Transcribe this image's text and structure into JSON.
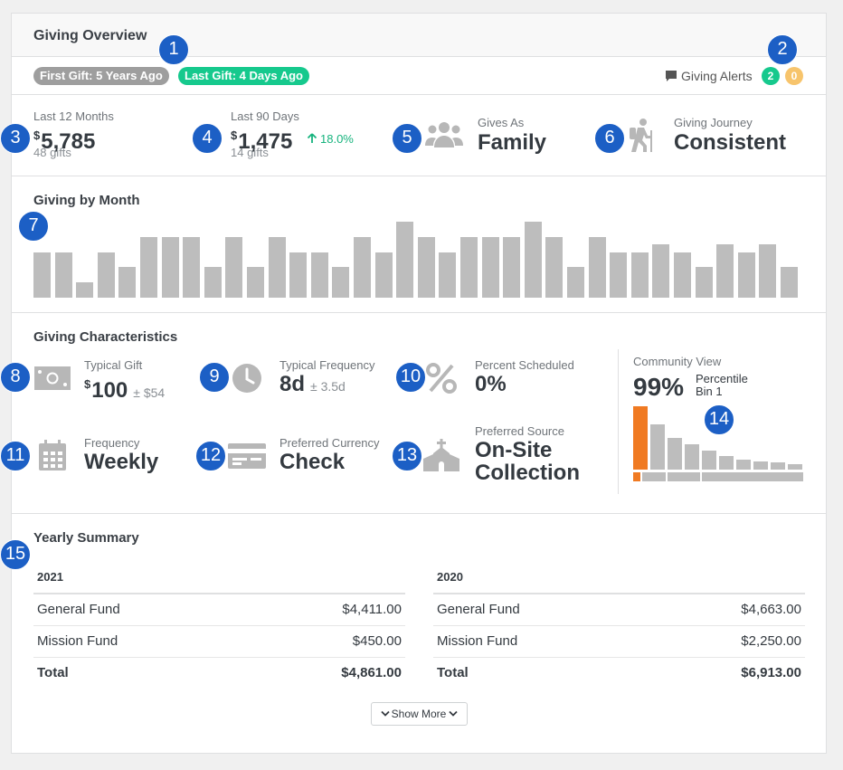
{
  "header": {
    "title": "Giving Overview"
  },
  "badges": {
    "first_gift": "First Gift: 5 Years Ago",
    "last_gift": "Last Gift: 4 Days Ago",
    "alerts_label": "Giving Alerts",
    "alerts_green_count": "2",
    "alerts_yellow_count": "0"
  },
  "callouts": [
    "1",
    "2",
    "3",
    "4",
    "5",
    "6",
    "7",
    "8",
    "9",
    "10",
    "11",
    "12",
    "13",
    "14",
    "15"
  ],
  "kpis": {
    "last12": {
      "label": "Last 12 Months",
      "currency": "$",
      "value": "5,785",
      "sub": "48 gifts"
    },
    "last90": {
      "label": "Last 90 Days",
      "currency": "$",
      "value": "1,475",
      "sub": "14 gifts",
      "trend": "18.0%"
    },
    "gives_as": {
      "label": "Gives As",
      "value": "Family"
    },
    "journey": {
      "label": "Giving Journey",
      "value": "Consistent"
    }
  },
  "giving_by_month": {
    "title": "Giving by Month",
    "chart_data": {
      "type": "bar",
      "title": "Giving by Month",
      "values": [
        3,
        3,
        1,
        3,
        2,
        4,
        4,
        4,
        2,
        4,
        2,
        4,
        3,
        3,
        2,
        4,
        3,
        5,
        4,
        3,
        4,
        4,
        4,
        5,
        4,
        2,
        4,
        3,
        3,
        3.5,
        3,
        2,
        3.5,
        3,
        3.5,
        2
      ],
      "ylim": [
        0,
        5
      ]
    }
  },
  "characteristics": {
    "title": "Giving Characteristics",
    "typical_gift": {
      "label": "Typical Gift",
      "currency": "$",
      "value": "100",
      "plus": "± $54"
    },
    "typical_frequency": {
      "label": "Typical Frequency",
      "value": "8d",
      "plus": "± 3.5d"
    },
    "percent_scheduled": {
      "label": "Percent Scheduled",
      "value": "0%"
    },
    "frequency": {
      "label": "Frequency",
      "value": "Weekly"
    },
    "preferred_currency": {
      "label": "Preferred Currency",
      "value": "Check"
    },
    "preferred_source": {
      "label": "Preferred Source",
      "value_line1": "On-Site",
      "value_line2": "Collection"
    },
    "community": {
      "label": "Community View",
      "value": "99%",
      "percentile_label": "Percentile",
      "bin_label": "Bin 1",
      "highlight_color": "#f07a22",
      "chart_data": {
        "type": "bar",
        "values": [
          100,
          72,
          50,
          40,
          30,
          22,
          16,
          13,
          11,
          9
        ],
        "highlighted_index": 0
      }
    }
  },
  "yearly_summary": {
    "title": "Yearly Summary",
    "years": [
      {
        "year": "2021",
        "rows": [
          {
            "fund": "General Fund",
            "amount": "$4,411.00"
          },
          {
            "fund": "Mission Fund",
            "amount": "$450.00"
          }
        ],
        "total_label": "Total",
        "total": "$4,861.00"
      },
      {
        "year": "2020",
        "rows": [
          {
            "fund": "General Fund",
            "amount": "$4,663.00"
          },
          {
            "fund": "Mission Fund",
            "amount": "$2,250.00"
          }
        ],
        "total_label": "Total",
        "total": "$6,913.00"
      }
    ],
    "show_more_label": "Show More"
  },
  "colors": {
    "accent_blue": "#1c5fc5",
    "green": "#16c98d",
    "yellow": "#f7c46c",
    "gray_bar": "#bdbdbd",
    "orange": "#f07a22"
  }
}
